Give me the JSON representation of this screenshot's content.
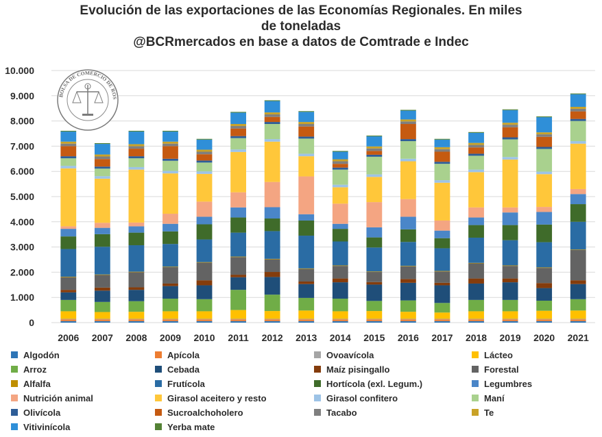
{
  "title": {
    "line1": "Evolución de las exportaciones de las Economías Regionales. En miles",
    "line2": "de toneladas",
    "line3": "@BCRmercados en base a datos de Comtrade e Indec"
  },
  "seal": {
    "text": "BOLSA DE COMERCIO DE ROSARIO"
  },
  "chart_data": {
    "type": "bar",
    "stacked": true,
    "title": "Evolución de las exportaciones de las Economías Regionales. En miles de toneladas",
    "subtitle": "@BCRmercados en base a datos de Comtrade e Indec",
    "categories": [
      "2006",
      "2007",
      "2008",
      "2009",
      "2010",
      "2011",
      "2012",
      "2013",
      "2014",
      "2015",
      "2016",
      "2017",
      "2018",
      "2019",
      "2020",
      "2021"
    ],
    "ylim": [
      0,
      10000
    ],
    "yticks": [
      "0",
      "1.000",
      "2.000",
      "3.000",
      "4.000",
      "5.000",
      "6.000",
      "7.000",
      "8.000",
      "9.000",
      "10.000"
    ],
    "grid": true,
    "legend_position": "bottom",
    "series": [
      {
        "name": "Algodón",
        "color": "#2e75b6",
        "values": [
          60,
          60,
          60,
          60,
          60,
          60,
          60,
          60,
          60,
          60,
          60,
          60,
          60,
          60,
          60,
          60
        ]
      },
      {
        "name": "Apícola",
        "color": "#ed7d31",
        "values": [
          70,
          70,
          70,
          70,
          70,
          70,
          70,
          70,
          70,
          70,
          70,
          70,
          70,
          70,
          70,
          70
        ]
      },
      {
        "name": "Ovoavícola",
        "color": "#a5a5a5",
        "values": [
          20,
          20,
          20,
          20,
          20,
          20,
          20,
          20,
          20,
          20,
          20,
          20,
          20,
          20,
          20,
          20
        ]
      },
      {
        "name": "Lácteo",
        "color": "#ffc000",
        "values": [
          300,
          270,
          280,
          300,
          300,
          350,
          310,
          330,
          300,
          310,
          280,
          250,
          300,
          300,
          320,
          330
        ]
      },
      {
        "name": "Arroz",
        "color": "#70ad47",
        "values": [
          450,
          400,
          420,
          500,
          480,
          800,
          650,
          500,
          500,
          400,
          450,
          380,
          450,
          450,
          400,
          450
        ]
      },
      {
        "name": "Cebada",
        "color": "#1f4e79",
        "values": [
          300,
          450,
          450,
          500,
          550,
          500,
          700,
          550,
          650,
          650,
          700,
          700,
          650,
          700,
          500,
          600
        ]
      },
      {
        "name": "Maíz pisingallo",
        "color": "#843c0c",
        "values": [
          100,
          120,
          100,
          100,
          200,
          100,
          200,
          100,
          150,
          100,
          150,
          100,
          200,
          150,
          200,
          150
        ]
      },
      {
        "name": "Forestal",
        "color": "#636363",
        "values": [
          500,
          500,
          600,
          650,
          700,
          700,
          500,
          500,
          500,
          400,
          500,
          450,
          600,
          500,
          600,
          1200
        ]
      },
      {
        "name": "Alfalfa",
        "color": "#bf8f00",
        "values": [
          20,
          20,
          20,
          20,
          20,
          20,
          20,
          20,
          20,
          20,
          20,
          20,
          20,
          20,
          20,
          20
        ]
      },
      {
        "name": "Frutícola",
        "color": "#2a6ca4",
        "values": [
          1100,
          1100,
          1050,
          900,
          900,
          950,
          1100,
          1300,
          950,
          950,
          950,
          900,
          1000,
          1000,
          1000,
          1100
        ]
      },
      {
        "name": "Hortícola (exl. Legum.)",
        "color": "#3f6b2a",
        "values": [
          500,
          500,
          500,
          500,
          600,
          600,
          500,
          600,
          500,
          400,
          500,
          400,
          500,
          600,
          700,
          700
        ]
      },
      {
        "name": "Legumbres",
        "color": "#4a86c8",
        "values": [
          300,
          250,
          250,
          300,
          300,
          400,
          450,
          250,
          200,
          400,
          500,
          300,
          300,
          500,
          500,
          400
        ]
      },
      {
        "name": "Nutrición animal",
        "color": "#f4a582",
        "values": [
          100,
          200,
          150,
          400,
          600,
          600,
          1000,
          1500,
          800,
          1000,
          700,
          400,
          400,
          200,
          200,
          200
        ]
      },
      {
        "name": "Girasol aceitero y resto",
        "color": "#ffc73a",
        "values": [
          2300,
          1750,
          2100,
          1600,
          1100,
          1600,
          1600,
          800,
          650,
          1000,
          1500,
          1500,
          1400,
          1900,
          1300,
          1800
        ]
      },
      {
        "name": "Girasol confitero",
        "color": "#9dc3e6",
        "values": [
          100,
          100,
          100,
          100,
          100,
          100,
          100,
          100,
          100,
          100,
          100,
          100,
          100,
          100,
          100,
          100
        ]
      },
      {
        "name": "Maní",
        "color": "#a9d18e",
        "values": [
          300,
          300,
          350,
          400,
          350,
          450,
          600,
          600,
          600,
          700,
          700,
          650,
          550,
          700,
          900,
          800
        ]
      },
      {
        "name": "Olivícola",
        "color": "#2e5d97",
        "values": [
          80,
          80,
          80,
          80,
          80,
          80,
          80,
          80,
          80,
          80,
          80,
          80,
          80,
          80,
          80,
          80
        ]
      },
      {
        "name": "Sucroalchoholero",
        "color": "#c55a11",
        "values": [
          400,
          300,
          300,
          500,
          250,
          300,
          200,
          400,
          150,
          150,
          600,
          400,
          250,
          400,
          400,
          300
        ]
      },
      {
        "name": "Tacabo",
        "color": "#7f7f7f",
        "values": [
          100,
          100,
          100,
          100,
          100,
          100,
          100,
          100,
          100,
          100,
          100,
          100,
          100,
          100,
          100,
          100
        ]
      },
      {
        "name": "Te",
        "color": "#c9a227",
        "values": [
          80,
          80,
          80,
          80,
          80,
          80,
          80,
          80,
          80,
          80,
          80,
          80,
          80,
          80,
          80,
          80
        ]
      },
      {
        "name": "Vitivinícola",
        "color": "#2f8fd8",
        "values": [
          400,
          420,
          500,
          400,
          400,
          450,
          450,
          400,
          300,
          400,
          350,
          300,
          400,
          500,
          600,
          500
        ]
      },
      {
        "name": "Yerba mate",
        "color": "#548235",
        "values": [
          30,
          30,
          30,
          30,
          30,
          30,
          30,
          30,
          30,
          30,
          30,
          30,
          30,
          30,
          30,
          30
        ]
      }
    ]
  }
}
